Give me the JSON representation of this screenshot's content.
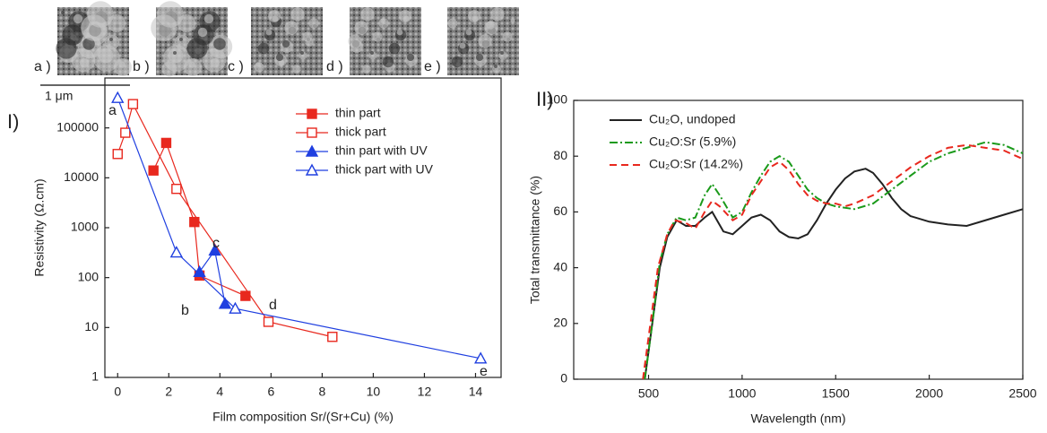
{
  "figure": {
    "images": [
      {
        "label": "a )"
      },
      {
        "label": "b )"
      },
      {
        "label": "c )"
      },
      {
        "label": "d )"
      },
      {
        "label": "e )"
      }
    ],
    "scale_bar": "1 μm"
  },
  "chart_data": [
    {
      "type": "scatter-line",
      "panel_label": "I)",
      "x_label": "Film composition Sr/(Sr+Cu) (%)",
      "y_label": "Resistivity (Ω.cm)",
      "xlim": [
        -0.5,
        15
      ],
      "xticks": [
        0,
        2,
        4,
        6,
        8,
        10,
        12,
        14
      ],
      "ylim": [
        1,
        1000000
      ],
      "yticks": [
        1,
        10,
        100,
        1000,
        10000,
        100000
      ],
      "log_y": true,
      "legend": "upper right",
      "series": [
        {
          "name": "thin part",
          "color": "#e8281e",
          "marker": "square",
          "x": [
            1.4,
            1.9,
            3.0,
            3.2,
            5.0
          ],
          "values": [
            14000,
            50000,
            1300,
            110,
            43
          ]
        },
        {
          "name": "thick part",
          "color": "#e8281e",
          "marker": "square-open",
          "x": [
            0,
            0.3,
            0.6,
            2.3,
            5.9,
            8.4
          ],
          "values": [
            30000,
            80000,
            300000,
            6000,
            13,
            6.5
          ]
        },
        {
          "name": "thin part with UV",
          "color": "#1f3fe0",
          "marker": "triangle",
          "x": [
            3.2,
            3.8,
            4.2
          ],
          "values": [
            130,
            350,
            30
          ]
        },
        {
          "name": "thick part with UV",
          "color": "#1f3fe0",
          "marker": "triangle-open",
          "x": [
            0,
            2.3,
            4.6,
            14.2
          ],
          "values": [
            400000,
            320,
            24,
            2.4
          ]
        }
      ],
      "annotations": [
        "a",
        "b",
        "c",
        "d",
        "e"
      ]
    },
    {
      "type": "line",
      "panel_label": "II)",
      "x_label": "Wavelength (nm)",
      "y_label": "Total transmittance (%)",
      "xlim": [
        100,
        2500
      ],
      "xticks": [
        500,
        1000,
        1500,
        2000,
        2500
      ],
      "ylim": [
        0,
        100
      ],
      "yticks": [
        0,
        20,
        40,
        60,
        80,
        100
      ],
      "legend": "upper left",
      "series": [
        {
          "name": "Cu₂O, undoped",
          "color": "#222222",
          "dash": "solid",
          "x": [
            480,
            520,
            560,
            600,
            650,
            700,
            750,
            800,
            840,
            900,
            950,
            1000,
            1050,
            1100,
            1150,
            1200,
            1250,
            1300,
            1350,
            1400,
            1450,
            1500,
            1550,
            1600,
            1660,
            1700,
            1750,
            1800,
            1850,
            1900,
            2000,
            2100,
            2200,
            2300,
            2400,
            2500
          ],
          "values": [
            0,
            20,
            40,
            51,
            57,
            55,
            55,
            58,
            60,
            53,
            52,
            55,
            58,
            59,
            57,
            53,
            51,
            50.5,
            52,
            57,
            63,
            68,
            72,
            74.5,
            75.5,
            74,
            70,
            65,
            61,
            58.5,
            56.5,
            55.5,
            55,
            57,
            59,
            61
          ]
        },
        {
          "name": "Cu₂O:Sr (5.9%)",
          "color": "#1a9a1a",
          "dash": "dashdot",
          "x": [
            480,
            520,
            560,
            600,
            650,
            700,
            750,
            800,
            840,
            880,
            950,
            1000,
            1050,
            1100,
            1150,
            1200,
            1250,
            1300,
            1350,
            1400,
            1450,
            1500,
            1600,
            1700,
            1800,
            1900,
            2000,
            2100,
            2200,
            2300,
            2400,
            2500
          ],
          "values": [
            0,
            20,
            42,
            52,
            58,
            57,
            58,
            66,
            70,
            66,
            58,
            60,
            67,
            73,
            78,
            80,
            78,
            73,
            68,
            65,
            63,
            62,
            61,
            63,
            68,
            73,
            78,
            81,
            83,
            85,
            84,
            81
          ]
        },
        {
          "name": "Cu₂O:Sr (14.2%)",
          "color": "#e8281e",
          "dash": "dashed",
          "x": [
            470,
            510,
            550,
            600,
            640,
            700,
            750,
            800,
            840,
            880,
            950,
            1000,
            1050,
            1100,
            1150,
            1200,
            1250,
            1300,
            1350,
            1400,
            1450,
            1500,
            1550,
            1600,
            1700,
            1800,
            1900,
            2000,
            2100,
            2200,
            2300,
            2400,
            2500
          ],
          "values": [
            0,
            20,
            40,
            52,
            57,
            56,
            54,
            60,
            64,
            62,
            57,
            59,
            66,
            71,
            76,
            78,
            75,
            70,
            66,
            64,
            63,
            63,
            62,
            63,
            66,
            71,
            76,
            80,
            83,
            84,
            83,
            82,
            79
          ]
        }
      ]
    }
  ]
}
